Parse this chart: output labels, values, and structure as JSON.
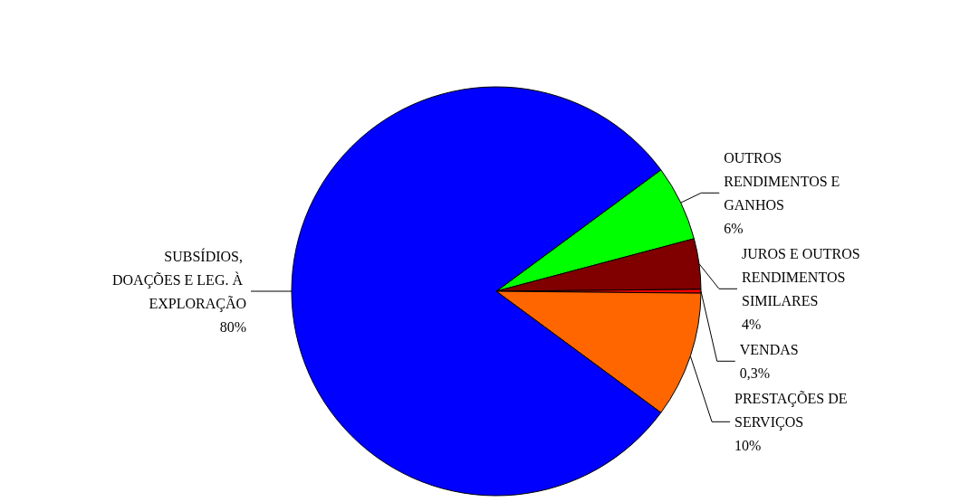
{
  "chart_data": {
    "type": "pie",
    "categories": [
      "OUTROS RENDIMENTOS E GANHOS",
      "JUROS E OUTROS RENDIMENTOS SIMILARES",
      "VENDAS",
      "PRESTAÇÕES DE SERVIÇOS",
      "SUBSÍDIOS, DOAÇÕES E LEG. À EXPLORAÇÃO"
    ],
    "values": [
      6,
      4,
      0.3,
      10,
      80
    ],
    "colors": [
      "#00ff00",
      "#800000",
      "#ff0000",
      "#ff6600",
      "#0000ff"
    ],
    "value_labels": [
      "6%",
      "4%",
      "0,3%",
      "10%",
      "80%"
    ],
    "legend": false
  }
}
